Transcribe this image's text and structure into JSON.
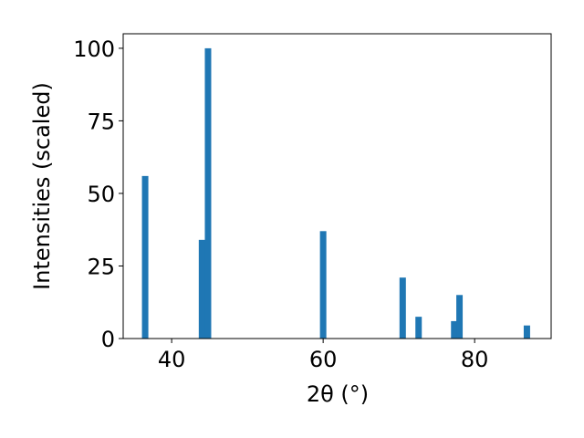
{
  "chart_data": {
    "type": "bar",
    "x": [
      36.5,
      44.0,
      44.8,
      60.0,
      70.5,
      72.6,
      77.3,
      78.0,
      86.9
    ],
    "values": [
      56,
      34,
      100,
      37,
      21,
      7.5,
      6,
      15,
      4.5
    ],
    "color": "#1f77b4",
    "xlabel": "2θ (°)",
    "ylabel": "Intensities (scaled)",
    "xlim": [
      33.6,
      90.1
    ],
    "xticks": [
      40,
      60,
      80
    ],
    "ylim": [
      0,
      105
    ],
    "yticks": [
      0,
      25,
      50,
      75,
      100
    ]
  }
}
